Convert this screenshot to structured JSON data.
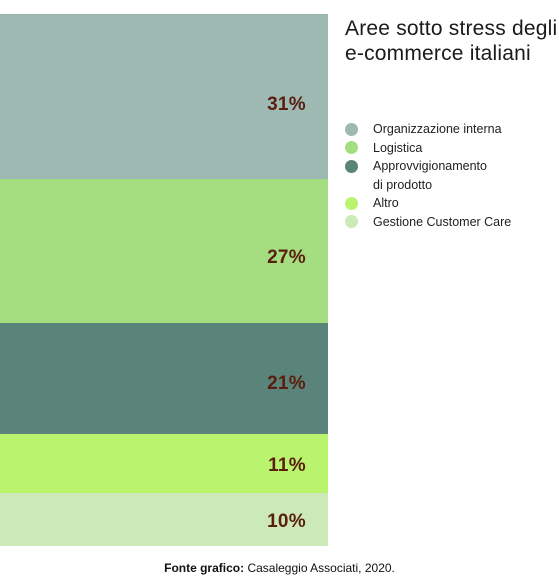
{
  "chart_data": {
    "type": "bar",
    "stacked": true,
    "title": "Aree sotto stress degli e-commerce italiani",
    "categories": [
      "Organizzazione interna",
      "Logistica",
      "Approvvigionamento\ndi prodotto",
      "Altro",
      "Gestione Customer Care"
    ],
    "values": [
      31,
      27,
      21,
      11,
      10
    ],
    "value_labels": [
      "31%",
      "27%",
      "21%",
      "11%",
      "10%"
    ],
    "colors": [
      "#9db9b1",
      "#a4de80",
      "#5a8479",
      "#baf36e",
      "#cbeab7"
    ],
    "legend_position": "right"
  },
  "source": {
    "prefix": "Fonte grafico:",
    "text": "Casaleggio Associati, 2020."
  }
}
